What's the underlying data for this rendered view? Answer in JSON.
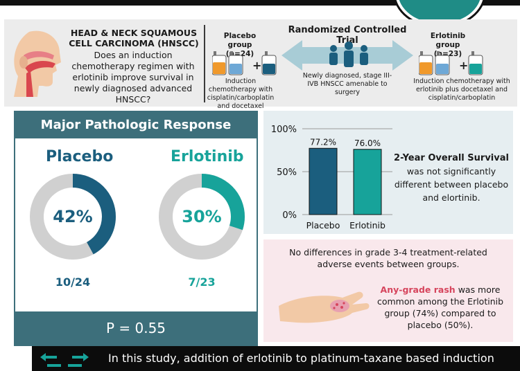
{
  "header": {
    "question_title": "HEAD & NECK SQUAMOUS CELL CARCINOMA (HNSCC)",
    "question_text": "Does an induction chemotherapy regimen with erlotinib improve survival in newly diagnosed advanced HNSCC?",
    "placebo_group_title": "Placebo group",
    "placebo_group_n": "(n=24)",
    "placebo_desc": "Induction chemotherapy with cisplatin/carboplatin and docetaxel",
    "rct_title": "Randomized Controlled Trial",
    "rct_desc": "Newly diagnosed, stage III-IVB HNSCC amenable to surgery",
    "erlotinib_group_title": "Erlotinib group",
    "erlotinib_group_n": "(n=23)",
    "erlotinib_desc": "Induction chemotherapy with erlotinib plus docetaxel and cisplatin/carboplatin",
    "plus_sign": "+"
  },
  "mpr": {
    "title": "Major Pathologic Response",
    "placebo_label": "Placebo",
    "placebo_pct": "42%",
    "placebo_value": 0.42,
    "placebo_frac": "10/24",
    "erlotinib_label": "Erlotinib",
    "erlotinib_pct": "30%",
    "erlotinib_value": 0.3,
    "erlotinib_frac": "7/23",
    "p_value": "P = 0.55"
  },
  "chart_data": {
    "type": "bar",
    "categories": [
      "Placebo",
      "Erlotinib"
    ],
    "values": [
      77.2,
      76.0
    ],
    "value_labels": [
      "77.2%",
      "76.0%"
    ],
    "ytick_labels": [
      "100%",
      "50%",
      "0%"
    ],
    "ylim": [
      0,
      100
    ],
    "colors": [
      "#1b5e7e",
      "#17a39a"
    ]
  },
  "os": {
    "title": "2-Year Overall Survival",
    "text": "was not significantly different between placebo and elortinib."
  },
  "adverse": {
    "top_text": "No differences in grade 3-4 treatment-related adverse events between groups.",
    "rash_highlight": "Any-grade rash",
    "rash_text": " was more common among the Erlotinib group (74%) compared to placebo (50%)."
  },
  "conclusion": {
    "text": "In this study, addition of erlotinib to platinum-taxane based induction"
  },
  "colors": {
    "placebo": "#1b5e7e",
    "erlotinib": "#17a39a",
    "panel_teal": "#3d6f7b",
    "rash_red": "#d6455d"
  }
}
